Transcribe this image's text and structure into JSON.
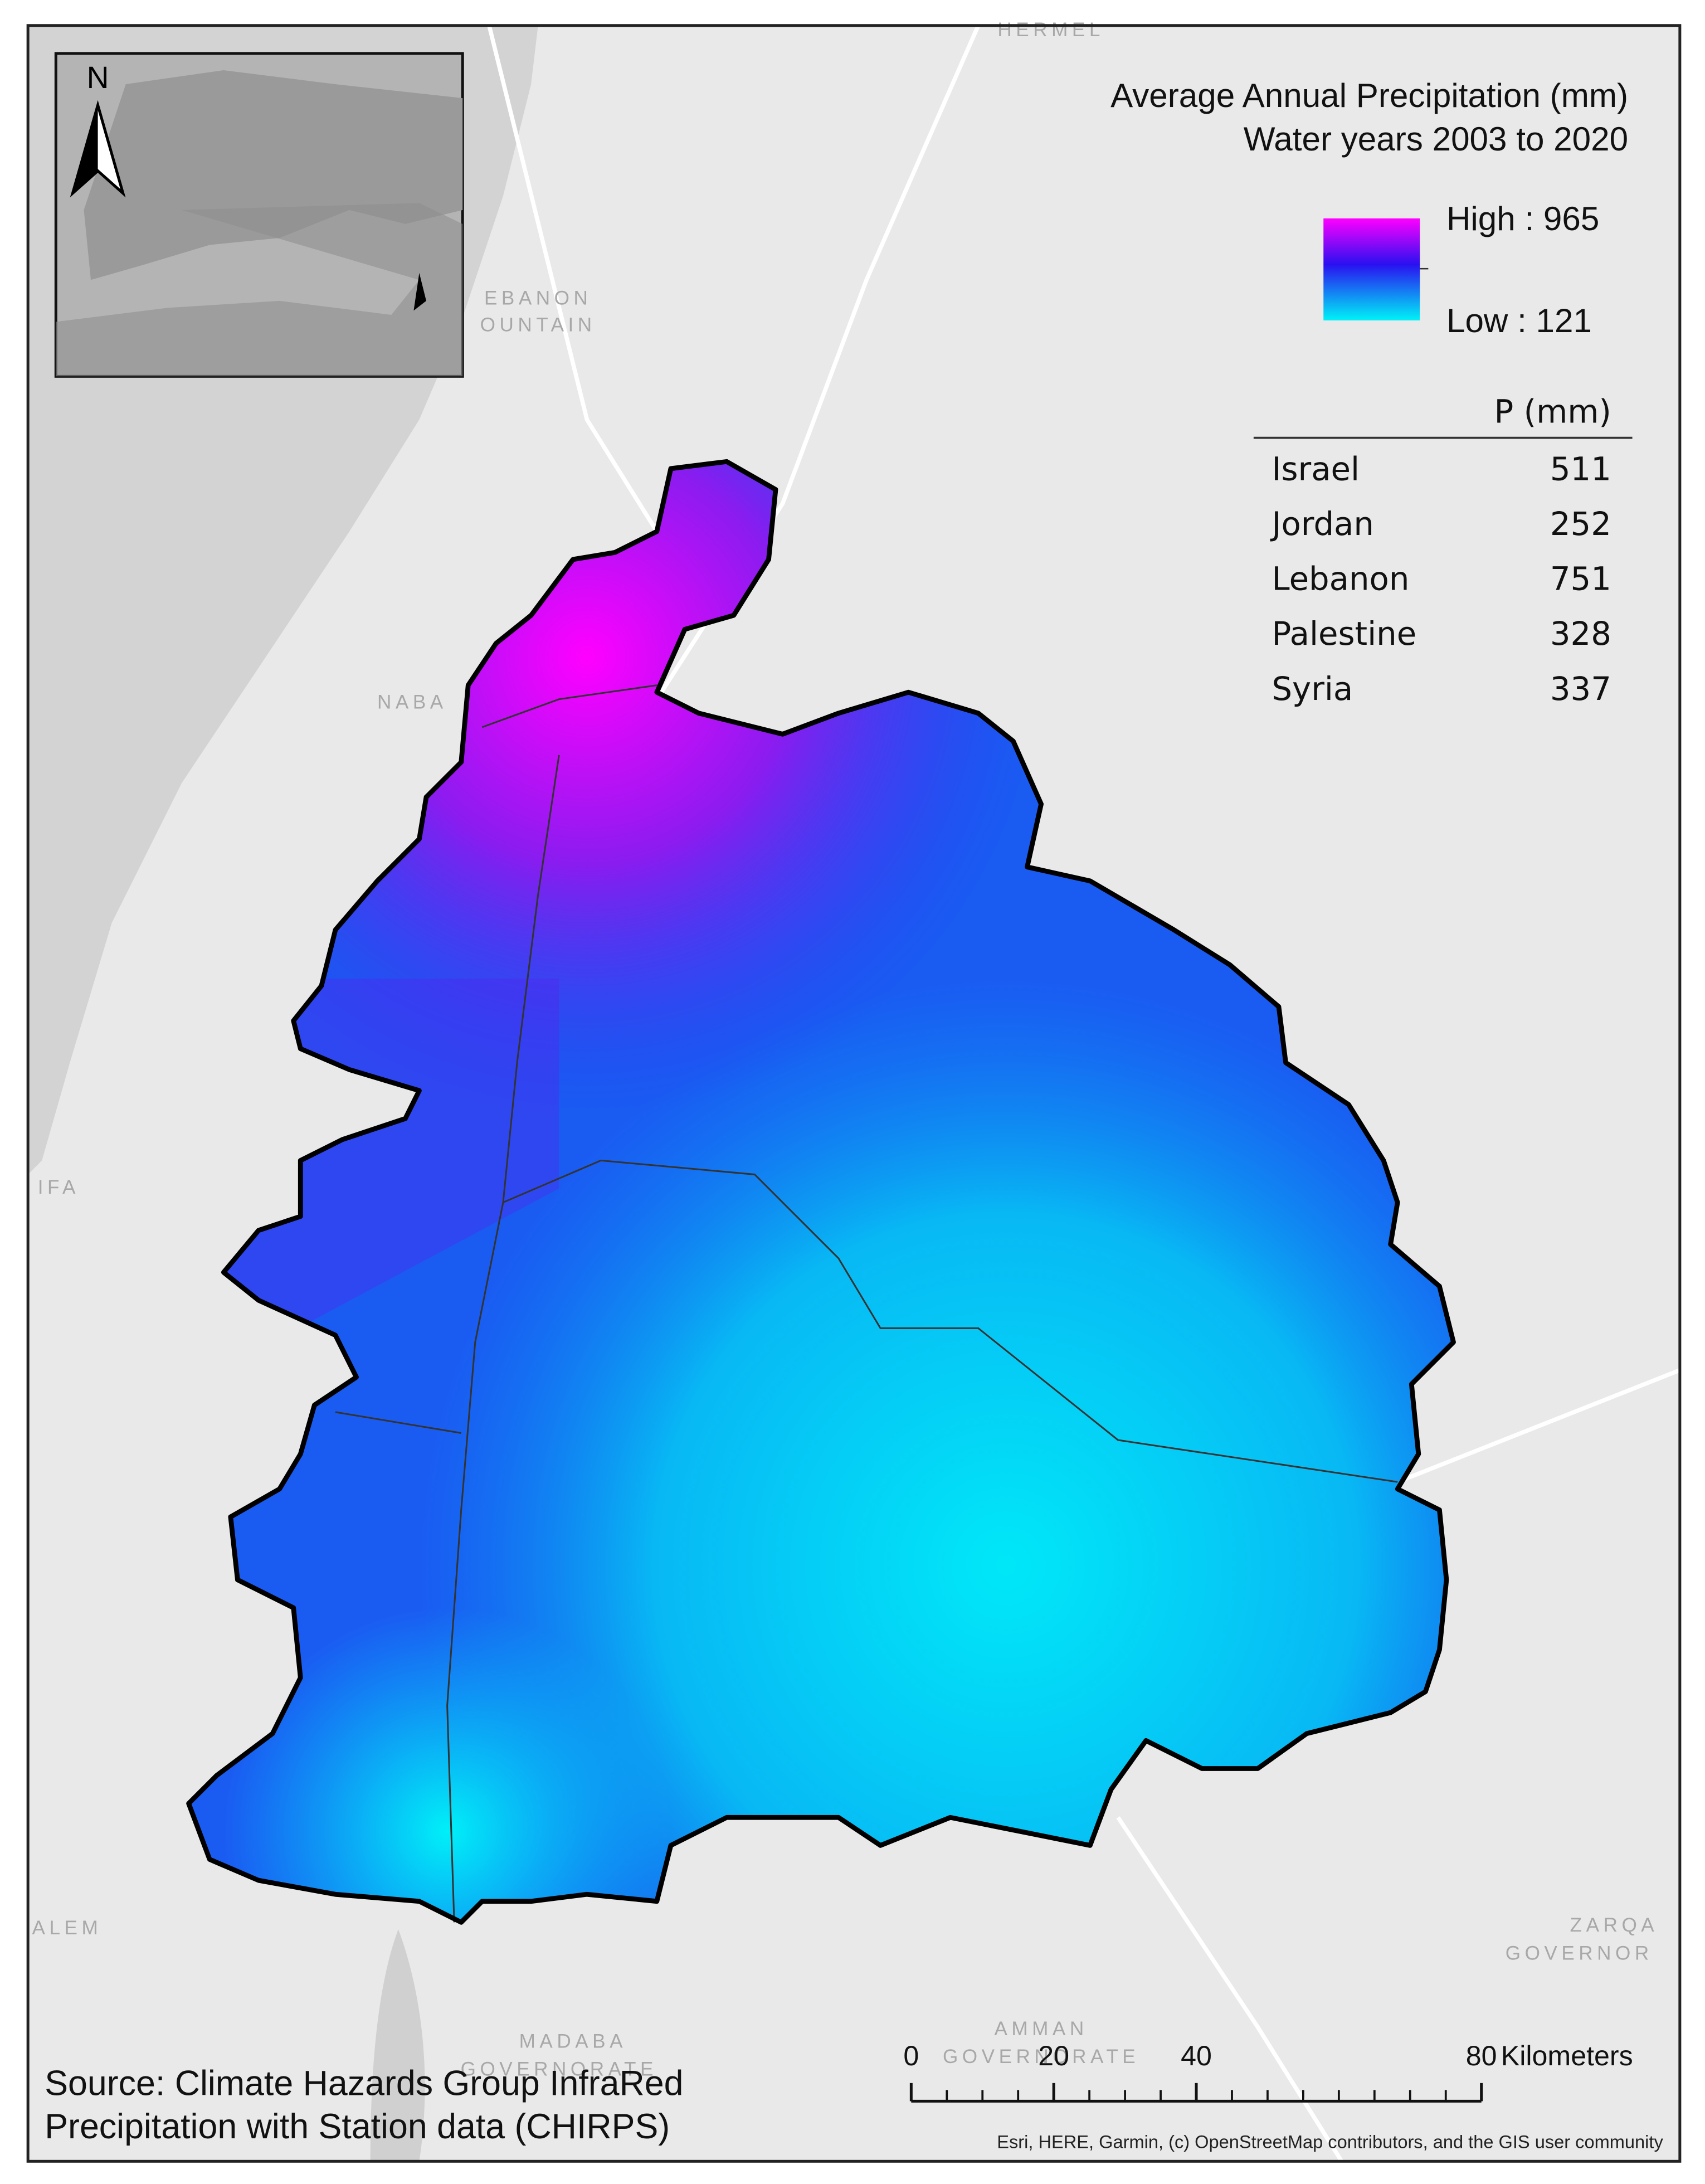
{
  "title": [
    "Average Annual Precipitation (mm)",
    "Water years 2003 to 2020"
  ],
  "legend": {
    "high_label": "High : 965",
    "low_label": "Low : 121"
  },
  "table": {
    "value_header": "P (mm)",
    "rows": [
      [
        "Israel",
        511
      ],
      [
        "Jordan",
        252
      ],
      [
        "Lebanon",
        751
      ],
      [
        "Palestine",
        328
      ],
      [
        "Syria",
        337
      ]
    ]
  },
  "scale_bar": {
    "ticks": [
      0,
      20,
      40,
      80
    ],
    "unit": "Kilometers"
  },
  "north_label": "N",
  "source": [
    "Source: Climate Hazards Group InfraRed",
    "Precipitation with Station data (CHIRPS)"
  ],
  "attribution": "Esri, HERE, Garmin, (c) OpenStreetMap contributors, and the GIS user community",
  "place_labels": [
    "HERMEL",
    "EBANON",
    "OUNTAIN",
    "NABA",
    "IFA",
    "ALEM",
    "MADABA",
    "GOVERNORATE",
    "AMMAN",
    "GOVERNORATE",
    "ZARQA",
    "GOVERNOR"
  ]
}
